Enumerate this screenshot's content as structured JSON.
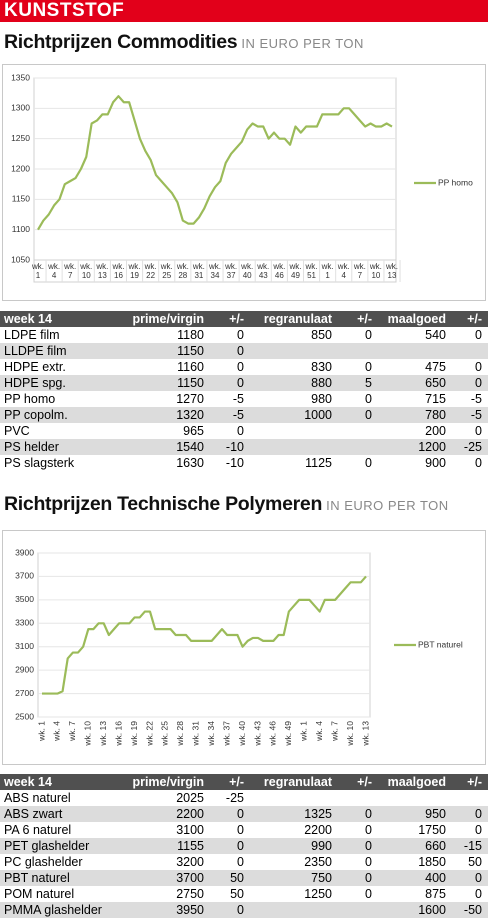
{
  "header": "KUNSTSTOF",
  "sections": [
    {
      "title": "Richtprijzen Commodities",
      "unit": "IN EURO PER TON"
    },
    {
      "title": "Richtprijzen Technische Polymeren",
      "unit": "IN EURO PER TON"
    }
  ],
  "chart_data": [
    {
      "type": "line",
      "categories": [
        "wk. 1",
        null,
        null,
        "wk. 4",
        null,
        null,
        "wk. 7",
        null,
        null,
        "wk. 10",
        null,
        null,
        "wk. 13",
        null,
        null,
        "wk. 16",
        null,
        null,
        "wk. 19",
        null,
        null,
        "wk. 22",
        null,
        null,
        "wk. 25",
        null,
        null,
        "wk. 28",
        null,
        null,
        "wk. 31",
        null,
        null,
        "wk. 34",
        null,
        null,
        "wk. 37",
        null,
        null,
        "wk. 40",
        null,
        null,
        "wk. 43",
        null,
        null,
        "wk. 46",
        null,
        null,
        "wk. 49",
        null,
        null,
        "wk. 51",
        null,
        null,
        "wk. 1",
        null,
        null,
        "wk. 4",
        null,
        null,
        "wk. 7",
        null,
        null,
        "wk. 10",
        null,
        null,
        "wk. 13"
      ],
      "series": [
        {
          "name": "PP homo",
          "color": "#9bbb59",
          "values": [
            1100,
            1115,
            1125,
            1140,
            1150,
            1175,
            1180,
            1185,
            1200,
            1220,
            1275,
            1280,
            1290,
            1290,
            1310,
            1320,
            1310,
            1310,
            1280,
            1250,
            1230,
            1215,
            1190,
            1180,
            1170,
            1160,
            1145,
            1115,
            1110,
            1110,
            1120,
            1135,
            1155,
            1170,
            1180,
            1210,
            1225,
            1235,
            1245,
            1265,
            1275,
            1270,
            1270,
            1250,
            1260,
            1250,
            1250,
            1240,
            1270,
            1260,
            1270,
            1270,
            1270,
            1290,
            1290,
            1290,
            1290,
            1300,
            1300,
            1290,
            1280,
            1270,
            1275,
            1270,
            1270,
            1275,
            1270
          ]
        }
      ],
      "ylim": [
        1050,
        1350
      ],
      "yticks": [
        1050,
        1100,
        1150,
        1200,
        1250,
        1300,
        1350
      ],
      "grid": true,
      "legend": "right"
    },
    {
      "type": "line",
      "categories": [
        "wk. 1",
        null,
        null,
        "wk. 4",
        null,
        null,
        "wk. 7",
        null,
        null,
        "wk. 10",
        null,
        null,
        "wk. 13",
        null,
        null,
        "wk. 16",
        null,
        null,
        "wk. 19",
        null,
        null,
        "wk. 22",
        null,
        null,
        "wk. 25",
        null,
        null,
        "wk. 28",
        null,
        null,
        "wk. 31",
        null,
        null,
        "wk. 34",
        null,
        null,
        "wk. 37",
        null,
        null,
        "wk. 40",
        null,
        null,
        "wk. 43",
        null,
        null,
        "wk. 46",
        null,
        null,
        "wk. 49",
        null,
        null,
        "wk. 1",
        null,
        null,
        "wk. 4",
        null,
        null,
        "wk. 7",
        null,
        null,
        "wk. 10",
        null,
        null,
        "wk. 13"
      ],
      "series": [
        {
          "name": "PBT naturel",
          "color": "#9bbb59",
          "values": [
            2700,
            2700,
            2700,
            2700,
            2720,
            3000,
            3050,
            3050,
            3100,
            3250,
            3250,
            3300,
            3300,
            3200,
            3250,
            3300,
            3300,
            3300,
            3350,
            3350,
            3400,
            3400,
            3250,
            3250,
            3250,
            3250,
            3200,
            3200,
            3200,
            3150,
            3150,
            3150,
            3150,
            3150,
            3200,
            3250,
            3200,
            3200,
            3200,
            3100,
            3150,
            3175,
            3175,
            3150,
            3150,
            3150,
            3200,
            3200,
            3400,
            3450,
            3500,
            3500,
            3500,
            3450,
            3400,
            3500,
            3500,
            3500,
            3550,
            3600,
            3650,
            3650,
            3650,
            3700
          ]
        }
      ],
      "ylim": [
        2500,
        3900
      ],
      "yticks": [
        2500,
        2700,
        2900,
        3100,
        3300,
        3500,
        3700,
        3900
      ],
      "grid": true,
      "legend": "right"
    }
  ],
  "tables": [
    {
      "columns": [
        "week 14",
        "prime/virgin",
        "+/-",
        "regranulaat",
        "+/-",
        "maalgoed",
        "+/-"
      ],
      "rows": [
        [
          "LDPE film",
          1180,
          0,
          850,
          0,
          540,
          0
        ],
        [
          "LLDPE film",
          1150,
          0,
          null,
          null,
          null,
          null
        ],
        [
          "HDPE extr.",
          1160,
          0,
          830,
          0,
          475,
          0
        ],
        [
          "HDPE spg.",
          1150,
          0,
          880,
          5,
          650,
          0
        ],
        [
          "PP homo",
          1270,
          -5,
          980,
          0,
          715,
          -5
        ],
        [
          "PP copolm.",
          1320,
          -5,
          1000,
          0,
          780,
          -5
        ],
        [
          "PVC",
          965,
          0,
          null,
          null,
          200,
          0
        ],
        [
          "PS helder",
          1540,
          -10,
          null,
          null,
          1200,
          -25
        ],
        [
          "PS slagsterk",
          1630,
          -10,
          1125,
          0,
          900,
          0
        ]
      ]
    },
    {
      "columns": [
        "week 14",
        "prime/virgin",
        "+/-",
        "regranulaat",
        "+/-",
        "maalgoed",
        "+/-"
      ],
      "rows": [
        [
          "ABS naturel",
          2025,
          -25,
          null,
          null,
          null,
          null
        ],
        [
          "ABS zwart",
          2200,
          0,
          1325,
          0,
          950,
          0
        ],
        [
          "PA 6 naturel",
          3100,
          0,
          2200,
          0,
          1750,
          0
        ],
        [
          "PET glashelder",
          1155,
          0,
          990,
          0,
          660,
          -15
        ],
        [
          "PC glashelder",
          3200,
          0,
          2350,
          0,
          1850,
          50
        ],
        [
          "PBT naturel",
          3700,
          50,
          750,
          0,
          400,
          0
        ],
        [
          "POM naturel",
          2750,
          50,
          1250,
          0,
          875,
          0
        ],
        [
          "PMMA glashelder",
          3950,
          0,
          null,
          null,
          1600,
          -50
        ]
      ]
    }
  ]
}
